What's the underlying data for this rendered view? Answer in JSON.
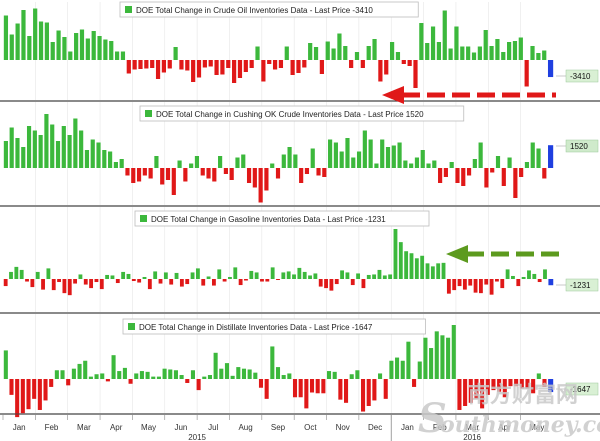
{
  "chart_data": {
    "type": "bar",
    "x_axis": {
      "months": [
        "Jan",
        "Feb",
        "Mar",
        "Apr",
        "May",
        "Jun",
        "Jul",
        "Aug",
        "Sep",
        "Oct",
        "Nov",
        "Dec",
        "Jan",
        "Feb",
        "Mar",
        "Apr",
        "May"
      ],
      "years": [
        "2015",
        "2016"
      ],
      "weeks_per_month": 4.33
    },
    "colors": {
      "positive": "#3cb83c",
      "negative": "#e01818",
      "last": "#1f3fe0",
      "arrow_red": "#e01818",
      "arrow_green": "#5c9a1e"
    },
    "panels": [
      {
        "name": "DOE Total Change in Crude Oil Inventories Data",
        "legend": "DOE Total Change in Crude Oil Inventories Data - Last Price -3410",
        "last_label": "-3410",
        "last": -3410,
        "annotation": "red-dashed-arrow-left",
        "values": [
          8900,
          5100,
          7300,
          10000,
          4800,
          10300,
          7700,
          7500,
          3600,
          5900,
          4600,
          1700,
          5400,
          6100,
          4300,
          5800,
          4800,
          4100,
          3800,
          1700,
          1700,
          -2700,
          -1900,
          -1800,
          -1700,
          -1600,
          -3800,
          -2500,
          -1700,
          2600,
          -1900,
          -2100,
          -4400,
          -3500,
          -1500,
          -1300,
          -3000,
          -2900,
          -1600,
          -4600,
          -3600,
          -2400,
          -1600,
          2700,
          -4300,
          -800,
          -1900,
          -1600,
          2700,
          -3000,
          -2600,
          -1500,
          3400,
          2600,
          -2800,
          3700,
          2300,
          5300,
          2800,
          -1600,
          1600,
          -1600,
          2800,
          4200,
          -4300,
          -2900,
          3600,
          1600,
          -800,
          -1200,
          -5600,
          7400,
          3400,
          6700,
          3600,
          9900,
          2300,
          6700,
          2700,
          2700,
          1500,
          2700,
          6000,
          2800,
          4200,
          1600,
          3600,
          3800,
          4500,
          -5300,
          2800,
          1400,
          1900,
          -3410
        ]
      },
      {
        "name": "DOE Total Change in Cushing OK Crude Inventories Data",
        "legend": "DOE Total Change in Cushing OK Crude Inventories Data - Last Price 1520",
        "last_label": "1520",
        "last": 1520,
        "annotation": "",
        "values": [
          1800,
          2700,
          2000,
          1400,
          2800,
          2500,
          2200,
          3600,
          2900,
          1800,
          2800,
          2200,
          3300,
          2500,
          1200,
          1900,
          1700,
          1200,
          1100,
          400,
          600,
          -500,
          -1000,
          -900,
          -500,
          -700,
          800,
          -1100,
          -800,
          -1800,
          500,
          -900,
          300,
          800,
          -500,
          -700,
          -900,
          800,
          -400,
          -800,
          700,
          900,
          -1000,
          -1300,
          -2300,
          -1500,
          300,
          -700,
          900,
          1400,
          900,
          -1000,
          -400,
          1300,
          -500,
          -600,
          1900,
          1700,
          1100,
          2000,
          700,
          1100,
          2500,
          1900,
          300,
          1900,
          1400,
          1500,
          1700,
          500,
          300,
          700,
          1200,
          300,
          500,
          -1000,
          -600,
          400,
          -1000,
          -1200,
          -500,
          600,
          1700,
          -1300,
          -300,
          800,
          -1200,
          700,
          -2000,
          -600,
          400,
          1700,
          1300,
          -700,
          1520
        ]
      },
      {
        "name": "DOE Total Change in Gasoline Inventories Data",
        "legend": "DOE Total Change in Gasoline Inventories Data - Last Price -1231",
        "last_label": "-1231",
        "last": -1231,
        "annotation": "green-dashed-arrow-left",
        "values": [
          -1400,
          1400,
          2400,
          1800,
          -500,
          -1600,
          1400,
          -2100,
          2100,
          -2200,
          -600,
          -2800,
          -3200,
          -900,
          900,
          -1100,
          -1800,
          -600,
          -2000,
          800,
          700,
          -800,
          1400,
          1000,
          -400,
          -700,
          400,
          -2000,
          1500,
          -900,
          1300,
          -1100,
          1200,
          -1500,
          -1000,
          1300,
          2100,
          -1300,
          500,
          -1300,
          1900,
          -500,
          400,
          2300,
          -1200,
          -300,
          1600,
          1300,
          -500,
          -500,
          2300,
          -200,
          1300,
          1500,
          900,
          2200,
          1400,
          700,
          1100,
          -1500,
          -1800,
          -2300,
          -1000,
          1700,
          1300,
          -1200,
          1100,
          -1800,
          800,
          900,
          1800,
          700,
          900,
          9900,
          7300,
          5500,
          5100,
          4100,
          4600,
          3100,
          2500,
          3100,
          3200,
          -2900,
          -2200,
          -1400,
          -2100,
          -1300,
          -2700,
          -2800,
          -1100,
          -3100,
          -500,
          -1800,
          1900,
          600,
          -1400,
          400,
          1700,
          1000,
          -600,
          1900,
          -1231
        ]
      },
      {
        "name": "DOE Total Change in Distillate Inventories Data",
        "legend": "DOE Total Change in Distillate Inventories Data - Last Price -1647",
        "last_label": "-1647",
        "last": -1647,
        "annotation": "",
        "values": [
          3600,
          -2000,
          -4800,
          -4300,
          -3800,
          -2500,
          -3900,
          -2700,
          -1000,
          1100,
          1100,
          -800,
          1300,
          1900,
          2300,
          300,
          600,
          700,
          -300,
          3000,
          1000,
          1400,
          -600,
          700,
          1000,
          900,
          300,
          300,
          1300,
          1200,
          1100,
          500,
          -500,
          1100,
          -1400,
          300,
          500,
          3300,
          1300,
          2000,
          400,
          1500,
          1300,
          1200,
          800,
          -1100,
          -2500,
          4100,
          1500,
          500,
          700,
          -2300,
          -2300,
          -3700,
          -1700,
          -1800,
          -1800,
          1000,
          900,
          -2600,
          -3000,
          600,
          1100,
          -4100,
          -3400,
          -2700,
          700,
          -2500,
          2300,
          2700,
          2300,
          4700,
          -1000,
          2200,
          5200,
          3900,
          6000,
          5500,
          5200,
          6800,
          -3900,
          -3400,
          -3000,
          -2500,
          -3700,
          -2000,
          -1400,
          -1600,
          -2300,
          -900,
          -900,
          -1200,
          -1200,
          -1800,
          700,
          -1000,
          -1647
        ]
      }
    ]
  }
}
